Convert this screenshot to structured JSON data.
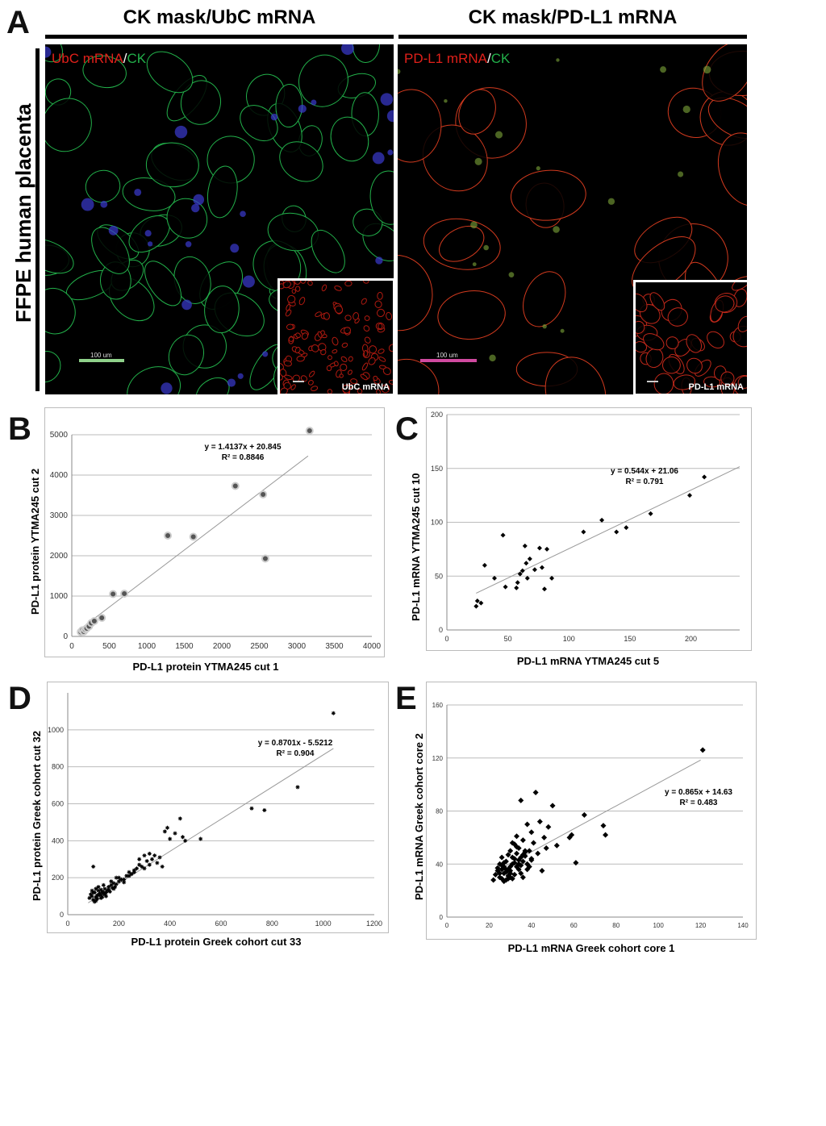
{
  "panelA": {
    "letter": "A",
    "side_label": "FFPE human placenta",
    "left": {
      "title": "CK mask/UbC mRNA",
      "legend_red": "UbC mRNA",
      "legend_sep": "/",
      "legend_green": "CK",
      "scale_text": "100 um",
      "inset_label": "UbC mRNA"
    },
    "right": {
      "title": "CK mask/PD-L1 mRNA",
      "legend_red": "PD-L1 mRNA",
      "legend_sep": "/",
      "legend_green": "CK",
      "scale_text": "100 um",
      "inset_label": "PD-L1 mRNA"
    },
    "colors": {
      "red": "#e0201a",
      "green": "#22b04a",
      "blue": "#3a3ad0"
    }
  },
  "chart_data": [
    {
      "id": "B",
      "letter": "B",
      "type": "scatter",
      "xlabel": "PD-L1 protein YTMA245 cut 1",
      "ylabel": "PD-L1 protein YTMA245 cut 2",
      "xlim": [
        0,
        4000
      ],
      "ylim": [
        0,
        5000
      ],
      "xticks": [
        0,
        500,
        1000,
        1500,
        2000,
        2500,
        3000,
        3500,
        4000
      ],
      "yticks": [
        0,
        1000,
        2000,
        3000,
        4000,
        5000
      ],
      "equation": "y = 1.4137x + 20.845",
      "r2": "R² = 0.8846",
      "trend": {
        "slope": 1.4137,
        "intercept": 20.845,
        "x_range": [
          100,
          3150
        ]
      },
      "x": [
        120,
        140,
        160,
        180,
        200,
        230,
        260,
        300,
        400,
        550,
        700,
        1280,
        1620,
        2180,
        2550,
        2580,
        3170
      ],
      "y": [
        110,
        150,
        120,
        170,
        200,
        250,
        330,
        380,
        460,
        1050,
        1060,
        2500,
        2470,
        3730,
        3520,
        1930,
        5100
      ]
    },
    {
      "id": "C",
      "letter": "C",
      "type": "scatter",
      "xlabel": "PD-L1 mRNA YTMA245 cut 5",
      "ylabel": "PD-L1 mRNA YTMA245 cut 10",
      "xlim": [
        0,
        240
      ],
      "ylim": [
        0,
        200
      ],
      "xticks": [
        0,
        50,
        100,
        150,
        200
      ],
      "yticks": [
        0,
        50,
        100,
        150,
        200
      ],
      "equation": "y = 0.544x + 21.06",
      "r2": "R² = 0.791",
      "trend": {
        "slope": 0.544,
        "intercept": 21.06,
        "x_range": [
          24,
          240
        ]
      },
      "x": [
        24,
        25,
        28,
        31,
        39,
        46,
        48,
        57,
        58,
        60,
        62,
        64,
        65,
        66,
        68,
        72,
        76,
        78,
        80,
        82,
        86,
        112,
        127,
        139,
        147,
        167,
        199,
        211
      ],
      "y": [
        22,
        27,
        25,
        60,
        48,
        88,
        40,
        39,
        44,
        52,
        55,
        78,
        62,
        48,
        66,
        56,
        76,
        58,
        38,
        75,
        48,
        91,
        102,
        91,
        95,
        108,
        125,
        142
      ]
    },
    {
      "id": "D",
      "letter": "D",
      "type": "scatter",
      "xlabel": "PD-L1 protein Greek cohort cut 33",
      "ylabel": "PD-L1 protein Greek cohort cut 32",
      "xlim": [
        0,
        1200
      ],
      "ylim": [
        0,
        1200
      ],
      "xticks": [
        0,
        200,
        400,
        600,
        800,
        1000,
        1200
      ],
      "yticks": [
        0,
        200,
        400,
        600,
        800,
        1000
      ],
      "equation": "y = 0.8701x - 5.5212",
      "r2": "R² = 0.904",
      "trend": {
        "slope": 0.8701,
        "intercept": -5.5212,
        "x_range": [
          80,
          1040
        ]
      },
      "x": [
        85,
        90,
        95,
        100,
        105,
        110,
        115,
        120,
        125,
        130,
        135,
        140,
        145,
        150,
        155,
        160,
        165,
        170,
        175,
        180,
        185,
        190,
        200,
        210,
        220,
        230,
        240,
        250,
        260,
        270,
        280,
        290,
        300,
        310,
        320,
        330,
        340,
        350,
        360,
        370,
        380,
        390,
        400,
        420,
        440,
        450,
        460,
        520,
        720,
        770,
        900,
        1040,
        100,
        110,
        120,
        130,
        140,
        150,
        160,
        105,
        115,
        125,
        135,
        145,
        95,
        100,
        110,
        120,
        130,
        140,
        170,
        180,
        190,
        200,
        220,
        240,
        260,
        280,
        300,
        320
      ],
      "y": [
        90,
        110,
        100,
        80,
        120,
        95,
        105,
        130,
        110,
        90,
        125,
        115,
        140,
        120,
        130,
        150,
        125,
        160,
        145,
        170,
        150,
        165,
        200,
        190,
        175,
        210,
        230,
        220,
        240,
        250,
        270,
        260,
        320,
        290,
        330,
        300,
        320,
        280,
        310,
        260,
        450,
        470,
        410,
        440,
        520,
        420,
        400,
        410,
        575,
        565,
        690,
        1090,
        120,
        140,
        150,
        105,
        160,
        100,
        135,
        70,
        85,
        115,
        95,
        110,
        130,
        260,
        75,
        105,
        135,
        120,
        180,
        140,
        200,
        180,
        190,
        210,
        230,
        300,
        250,
        270
      ]
    },
    {
      "id": "E",
      "letter": "E",
      "type": "scatter",
      "xlabel": "PD-L1 mRNA Greek cohort core 1",
      "ylabel": "PD-L1 mRNA Greek cohort core 2",
      "xlim": [
        0,
        140
      ],
      "ylim": [
        0,
        160
      ],
      "xticks": [
        0,
        20,
        40,
        60,
        80,
        100,
        120,
        140
      ],
      "yticks": [
        0,
        40,
        80,
        120,
        160
      ],
      "equation": "y = 0.865x + 14.63",
      "r2": "R² = 0.483",
      "trend": {
        "slope": 0.865,
        "intercept": 14.63,
        "x_range": [
          25,
          120
        ]
      },
      "x": [
        22,
        23,
        24,
        25,
        25,
        26,
        26,
        27,
        27,
        28,
        28,
        29,
        29,
        30,
        30,
        31,
        31,
        32,
        32,
        33,
        33,
        34,
        34,
        35,
        35,
        36,
        36,
        37,
        38,
        38,
        39,
        40,
        40,
        41,
        42,
        43,
        44,
        45,
        46,
        47,
        48,
        50,
        52,
        58,
        59,
        61,
        65,
        74,
        75,
        121,
        24,
        26,
        28,
        30,
        32,
        34,
        27,
        29,
        31,
        33,
        35,
        37,
        25,
        27,
        29,
        31,
        33,
        36,
        38,
        40,
        30,
        32,
        34,
        36,
        28,
        30,
        26,
        35,
        37,
        39
      ],
      "y": [
        28,
        32,
        35,
        30,
        40,
        29,
        45,
        33,
        38,
        36,
        42,
        31,
        47,
        35,
        50,
        29,
        40,
        44,
        55,
        38,
        48,
        36,
        52,
        33,
        88,
        42,
        58,
        46,
        40,
        70,
        50,
        44,
        64,
        56,
        94,
        48,
        72,
        35,
        60,
        52,
        68,
        84,
        54,
        60,
        62,
        41,
        77,
        69,
        62,
        126,
        37,
        39,
        34,
        30,
        41,
        43,
        27,
        36,
        45,
        53,
        39,
        49,
        33,
        41,
        29,
        56,
        61,
        47,
        36,
        43,
        38,
        32,
        40,
        30,
        28,
        33,
        36,
        45,
        50,
        38
      ]
    }
  ]
}
